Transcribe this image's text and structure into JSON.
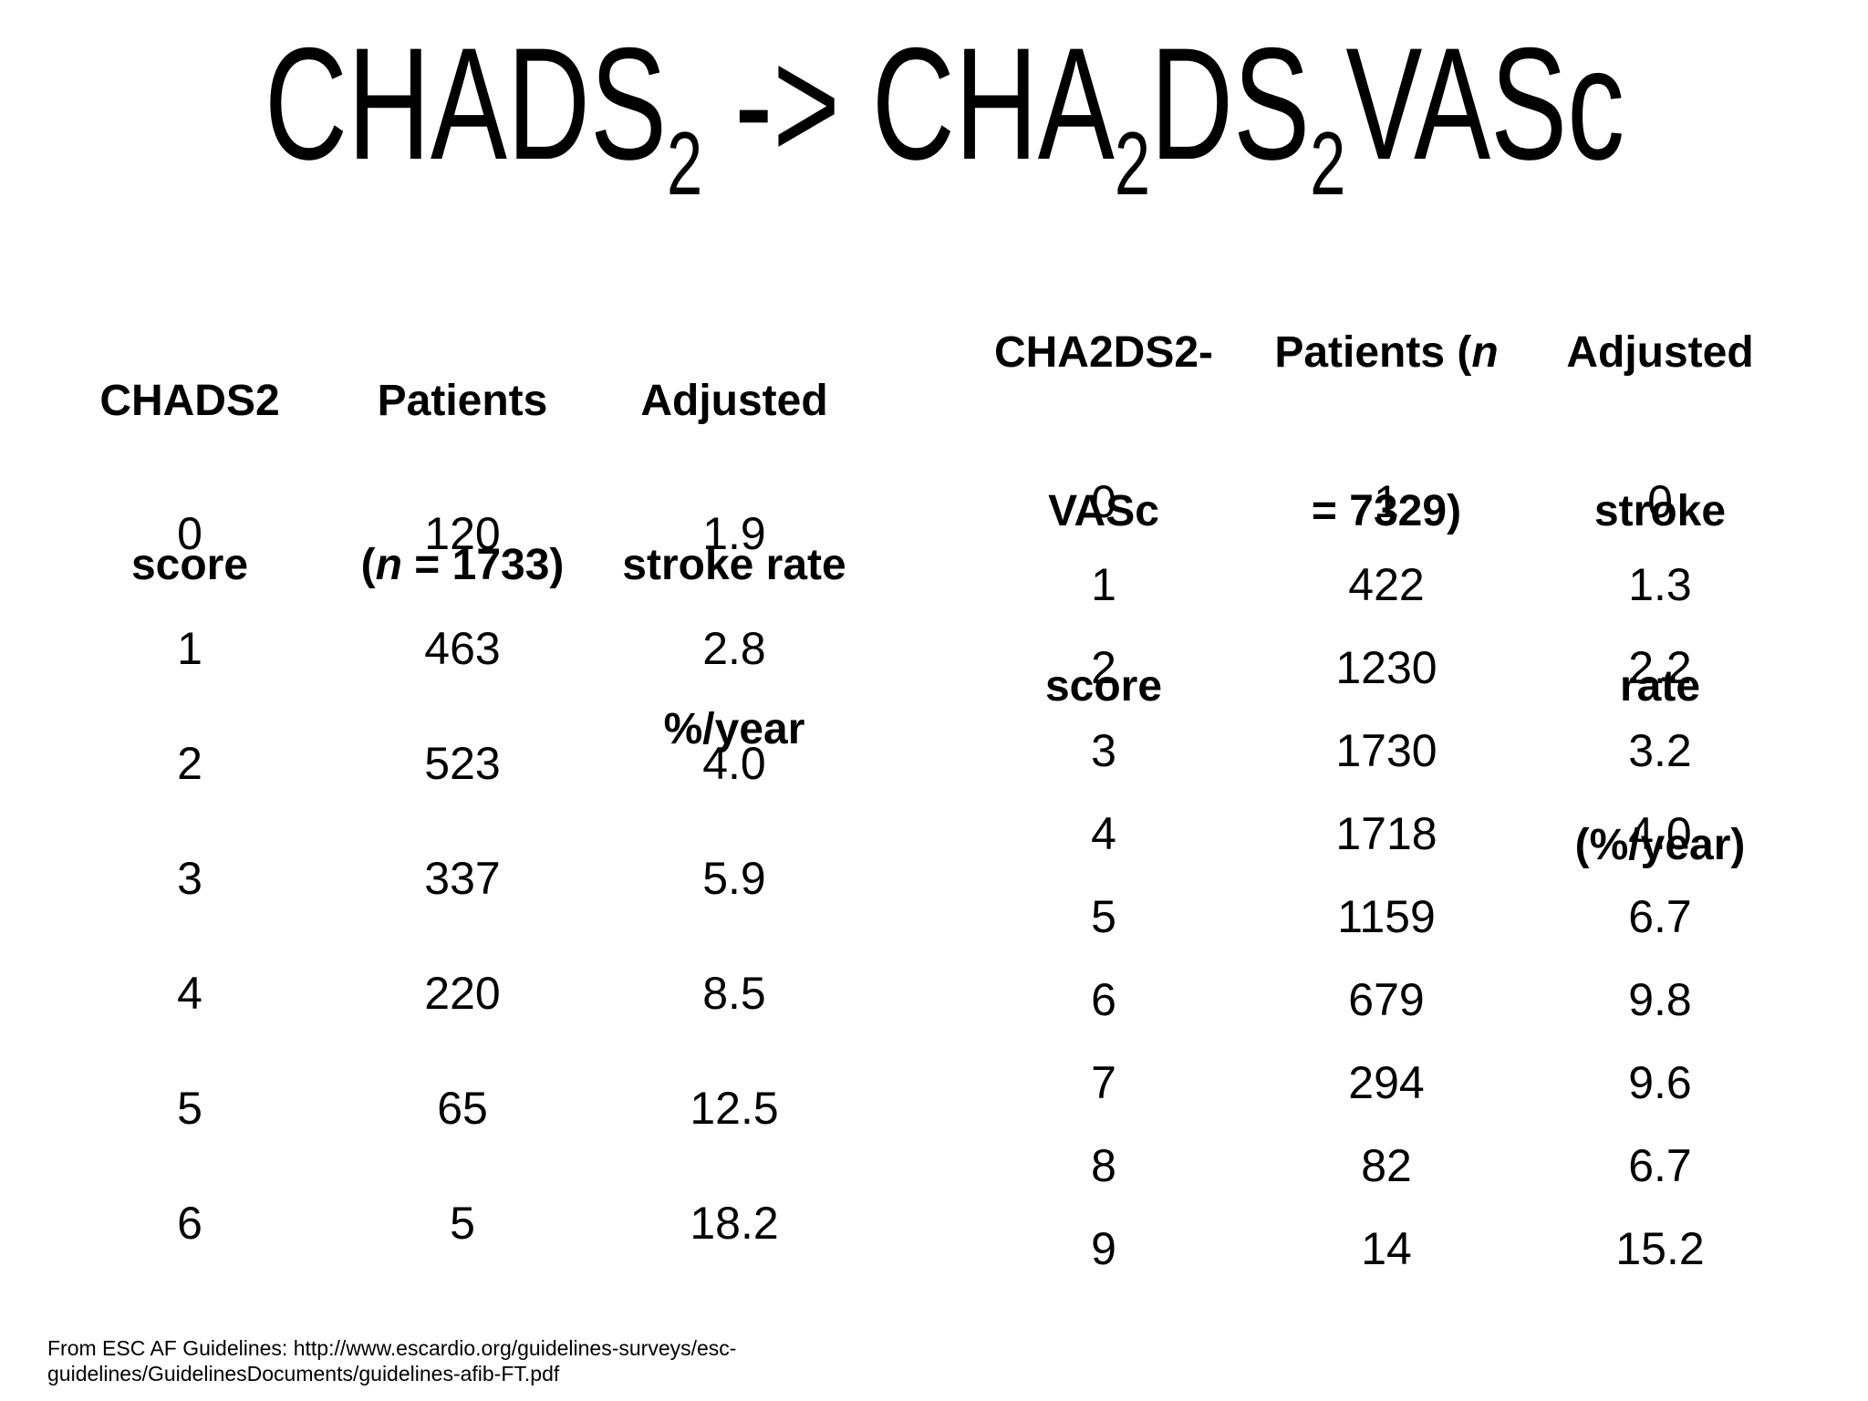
{
  "title": {
    "base1": "CHADS",
    "sub1": "2",
    "arrow": " -> ",
    "base2": "CHA",
    "sub2": "2",
    "base3": "DS",
    "sub3": "2",
    "base4": "VASc"
  },
  "left": {
    "header": {
      "c1l1": "CHADS2",
      "c1l2": "score",
      "c2l1": "Patients",
      "c2open": "(",
      "c2n": "n",
      "c2rest": " = 1733)",
      "c3l1": "Adjusted",
      "c3l2": "stroke rate",
      "c3l3": "%/year"
    },
    "rows": [
      [
        "0",
        "120",
        "1.9"
      ],
      [
        "1",
        "463",
        "2.8"
      ],
      [
        "2",
        "523",
        "4.0"
      ],
      [
        "3",
        "337",
        "5.9"
      ],
      [
        "4",
        "220",
        "8.5"
      ],
      [
        "5",
        "65",
        "12.5"
      ],
      [
        "6",
        "5",
        "18.2"
      ]
    ]
  },
  "right": {
    "header": {
      "c1l1": "CHA2DS2-",
      "c1l2": "VASc",
      "c1l3": "score",
      "c2l1": "Patients (",
      "c2n": "n",
      "c2l2": "= 7329)",
      "c3l1": "Adjusted",
      "c3l2": "stroke",
      "c3l3": "rate",
      "c3l4": "(%/year)"
    },
    "rows": [
      [
        "0",
        "1",
        "0"
      ],
      [
        "1",
        "422",
        "1.3"
      ],
      [
        "2",
        "1230",
        "2.2"
      ],
      [
        "3",
        "1730",
        "3.2"
      ],
      [
        "4",
        "1718",
        "4.0"
      ],
      [
        "5",
        "1159",
        "6.7"
      ],
      [
        "6",
        "679",
        "9.8"
      ],
      [
        "7",
        "294",
        "9.6"
      ],
      [
        "8",
        "82",
        "6.7"
      ],
      [
        "9",
        "14",
        "15.2"
      ]
    ]
  },
  "footer": {
    "line1": "From ESC AF Guidelines: http://www.escardio.org/guidelines-surveys/esc-",
    "line2": "guidelines/GuidelinesDocuments/guidelines-afib-FT.pdf"
  }
}
